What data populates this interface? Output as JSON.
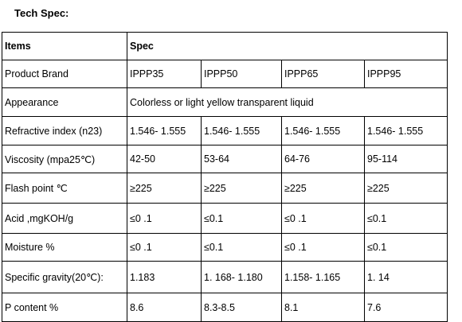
{
  "title": "Tech Spec:",
  "table": {
    "headers": [
      "Items",
      "Spec"
    ],
    "rows": [
      {
        "item": "Product Brand",
        "values": [
          "IPPP35",
          "IPPP50",
          "IPPP65",
          "IPPP95"
        ]
      },
      {
        "item": "Appearance",
        "merged": "Colorless or light yellow transparent liquid"
      },
      {
        "item": "Refractive index (n23)",
        "values": [
          "1.546- 1.555",
          "1.546- 1.555",
          "1.546- 1.555",
          "1.546- 1.555"
        ]
      },
      {
        "item": "Viscosity (mpa25℃)",
        "values": [
          "42-50",
          "53-64",
          "64-76",
          "95-114"
        ]
      },
      {
        "item": "Flash point ℃",
        "values": [
          "≥225",
          "≥225",
          "≥225",
          "≥225"
        ]
      },
      {
        "item": "Acid ,mgKOH/g",
        "values": [
          "≤0 .1",
          "≤0.1",
          "≤0 .1",
          "≤0.1"
        ]
      },
      {
        "item": "Moisture %",
        "values": [
          "≤0 .1",
          "≤0.1",
          "≤0 .1",
          "≤0.1"
        ]
      },
      {
        "item": "Specific gravity(20℃):",
        "values": [
          "1.183",
          "1. 168- 1.180",
          "1.158- 1.165",
          "1. 14"
        ]
      },
      {
        "item": "P content %",
        "values": [
          "8.6",
          "8.3-8.5",
          "8.1",
          "7.6"
        ]
      }
    ]
  }
}
